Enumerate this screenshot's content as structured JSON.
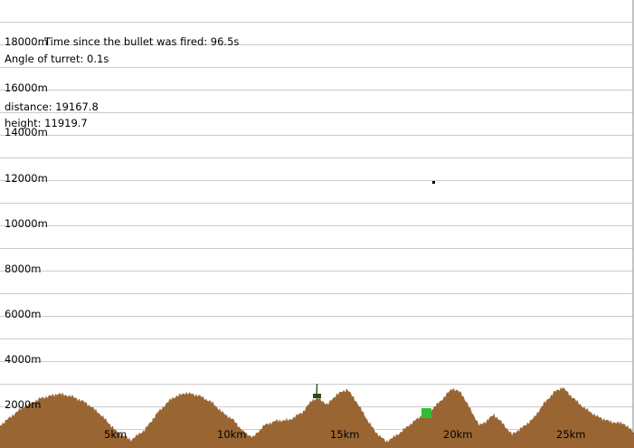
{
  "hud": {
    "time_text": "Time since the bullet was fired: 96.5s",
    "angle_text": "Angle of turret: 0.1s",
    "distance_text": "distance: 19167.8",
    "height_text": "height: 11919.7"
  },
  "axes": {
    "y_labels": [
      "18000m",
      "16000m",
      "14000m",
      "12000m",
      "10000m",
      "8000m",
      "6000m",
      "4000m",
      "2000m"
    ],
    "x_labels": [
      "5km",
      "10km",
      "15km",
      "20km",
      "25km"
    ]
  },
  "scene": {
    "terrain_color": "#996633",
    "grid_color": "#cccccc",
    "target_color": "#33bb33",
    "projectile_color": "#000000",
    "cannon_color": "#2e4a1e",
    "projectile": {
      "distance_m": 19167.8,
      "height_m": 11919.7
    },
    "target": {
      "distance_km": 18.8
    },
    "cannon": {
      "distance_km": 14
    }
  }
}
